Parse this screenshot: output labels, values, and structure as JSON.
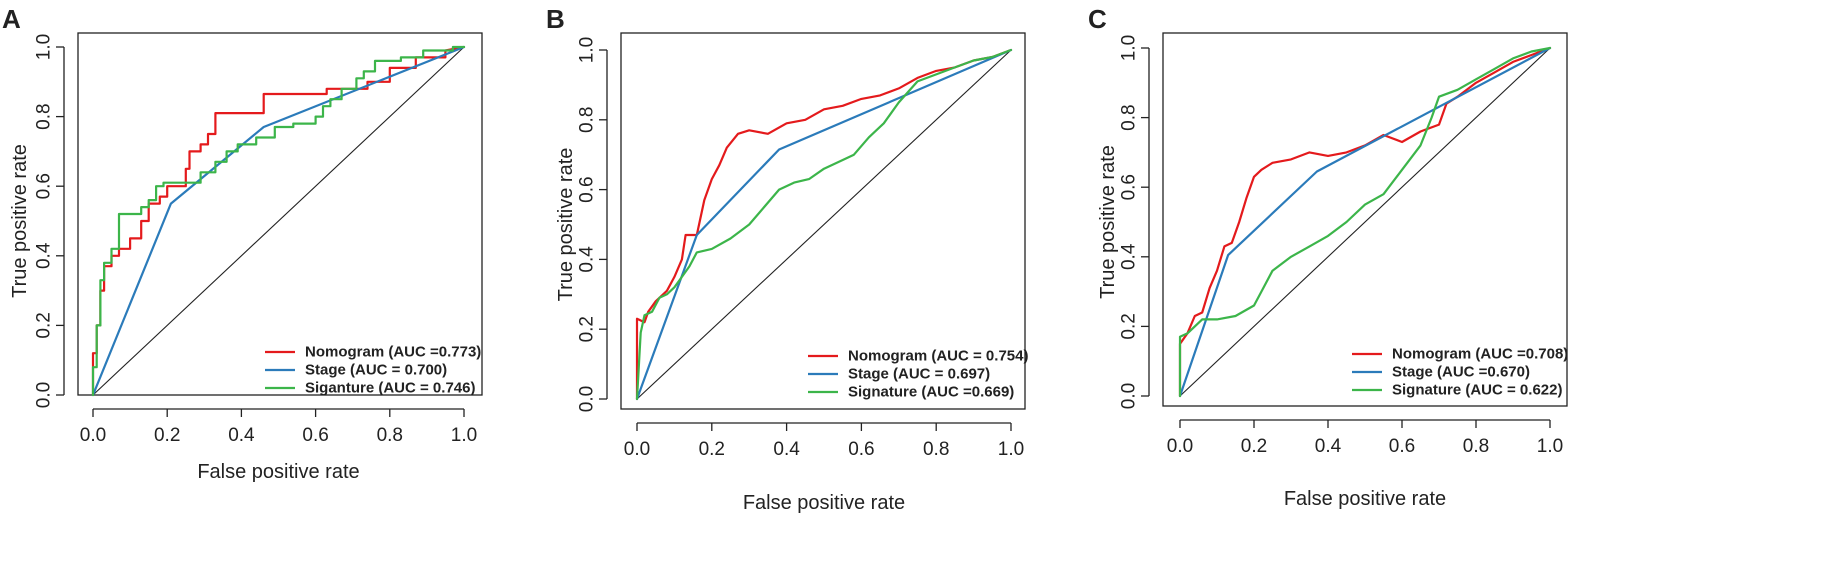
{
  "chart_data": [
    {
      "type": "line",
      "panel_label": "A",
      "xlabel": "False positive rate",
      "ylabel": "True positive rate",
      "xlim": [
        0,
        1
      ],
      "ylim": [
        0,
        1
      ],
      "xticks": [
        "0.0",
        "0.2",
        "0.4",
        "0.6",
        "0.8",
        "1.0"
      ],
      "yticks": [
        "0.0",
        "0.2",
        "0.4",
        "0.6",
        "0.8",
        "1.0"
      ],
      "legend_position": "bottom-right",
      "reference_line": "diagonal",
      "series": [
        {
          "name": "Nomogram (AUC =0.773)",
          "color": "#e41a1c",
          "points": [
            [
              0,
              0
            ],
            [
              0,
              0.12
            ],
            [
              0.01,
              0.12
            ],
            [
              0.01,
              0.2
            ],
            [
              0.02,
              0.2
            ],
            [
              0.02,
              0.3
            ],
            [
              0.03,
              0.3
            ],
            [
              0.03,
              0.37
            ],
            [
              0.05,
              0.37
            ],
            [
              0.05,
              0.4
            ],
            [
              0.07,
              0.4
            ],
            [
              0.07,
              0.42
            ],
            [
              0.1,
              0.42
            ],
            [
              0.1,
              0.45
            ],
            [
              0.13,
              0.45
            ],
            [
              0.13,
              0.5
            ],
            [
              0.15,
              0.5
            ],
            [
              0.15,
              0.55
            ],
            [
              0.18,
              0.55
            ],
            [
              0.18,
              0.57
            ],
            [
              0.2,
              0.57
            ],
            [
              0.2,
              0.6
            ],
            [
              0.25,
              0.6
            ],
            [
              0.25,
              0.65
            ],
            [
              0.26,
              0.65
            ],
            [
              0.26,
              0.7
            ],
            [
              0.29,
              0.7
            ],
            [
              0.29,
              0.72
            ],
            [
              0.31,
              0.72
            ],
            [
              0.31,
              0.75
            ],
            [
              0.33,
              0.75
            ],
            [
              0.33,
              0.81
            ],
            [
              0.46,
              0.81
            ],
            [
              0.46,
              0.865
            ],
            [
              0.63,
              0.865
            ],
            [
              0.63,
              0.88
            ],
            [
              0.74,
              0.88
            ],
            [
              0.74,
              0.9
            ],
            [
              0.8,
              0.9
            ],
            [
              0.8,
              0.94
            ],
            [
              0.87,
              0.94
            ],
            [
              0.87,
              0.97
            ],
            [
              0.95,
              0.97
            ],
            [
              0.95,
              0.99
            ],
            [
              1,
              1
            ]
          ]
        },
        {
          "name": "Stage (AUC = 0.700)",
          "color": "#2b7bba",
          "points": [
            [
              0,
              0
            ],
            [
              0.21,
              0.55
            ],
            [
              0.46,
              0.77
            ],
            [
              1,
              1
            ]
          ]
        },
        {
          "name": "Siganture (AUC = 0.746)",
          "color": "#3cb54a",
          "points": [
            [
              0,
              0
            ],
            [
              0,
              0.08
            ],
            [
              0.01,
              0.08
            ],
            [
              0.01,
              0.2
            ],
            [
              0.02,
              0.2
            ],
            [
              0.02,
              0.33
            ],
            [
              0.03,
              0.33
            ],
            [
              0.03,
              0.38
            ],
            [
              0.05,
              0.38
            ],
            [
              0.05,
              0.42
            ],
            [
              0.07,
              0.42
            ],
            [
              0.07,
              0.52
            ],
            [
              0.13,
              0.52
            ],
            [
              0.13,
              0.54
            ],
            [
              0.15,
              0.54
            ],
            [
              0.15,
              0.56
            ],
            [
              0.17,
              0.56
            ],
            [
              0.17,
              0.6
            ],
            [
              0.19,
              0.6
            ],
            [
              0.19,
              0.61
            ],
            [
              0.29,
              0.61
            ],
            [
              0.29,
              0.64
            ],
            [
              0.33,
              0.64
            ],
            [
              0.33,
              0.67
            ],
            [
              0.36,
              0.67
            ],
            [
              0.36,
              0.7
            ],
            [
              0.39,
              0.7
            ],
            [
              0.39,
              0.72
            ],
            [
              0.44,
              0.72
            ],
            [
              0.44,
              0.74
            ],
            [
              0.49,
              0.74
            ],
            [
              0.49,
              0.77
            ],
            [
              0.54,
              0.77
            ],
            [
              0.54,
              0.78
            ],
            [
              0.6,
              0.78
            ],
            [
              0.6,
              0.8
            ],
            [
              0.62,
              0.8
            ],
            [
              0.62,
              0.83
            ],
            [
              0.64,
              0.83
            ],
            [
              0.64,
              0.85
            ],
            [
              0.67,
              0.85
            ],
            [
              0.67,
              0.88
            ],
            [
              0.71,
              0.88
            ],
            [
              0.71,
              0.91
            ],
            [
              0.73,
              0.91
            ],
            [
              0.73,
              0.93
            ],
            [
              0.76,
              0.93
            ],
            [
              0.76,
              0.96
            ],
            [
              0.83,
              0.96
            ],
            [
              0.83,
              0.97
            ],
            [
              0.89,
              0.97
            ],
            [
              0.89,
              0.99
            ],
            [
              0.97,
              0.99
            ],
            [
              0.97,
              1
            ],
            [
              1,
              1
            ]
          ]
        }
      ]
    },
    {
      "type": "line",
      "panel_label": "B",
      "xlabel": "False positive rate",
      "ylabel": "True positive rate",
      "xlim": [
        0,
        1
      ],
      "ylim": [
        0,
        1
      ],
      "xticks": [
        "0.0",
        "0.2",
        "0.4",
        "0.6",
        "0.8",
        "1.0"
      ],
      "yticks": [
        "0.0",
        "0.2",
        "0.4",
        "0.6",
        "0.8",
        "1.0"
      ],
      "legend_position": "bottom-right",
      "reference_line": "diagonal",
      "series": [
        {
          "name": "Nomogram (AUC = 0.754)",
          "color": "#e41a1c",
          "points": [
            [
              0,
              0
            ],
            [
              0,
              0.23
            ],
            [
              0.02,
              0.22
            ],
            [
              0.03,
              0.25
            ],
            [
              0.05,
              0.28
            ],
            [
              0.08,
              0.31
            ],
            [
              0.1,
              0.35
            ],
            [
              0.12,
              0.4
            ],
            [
              0.13,
              0.47
            ],
            [
              0.16,
              0.47
            ],
            [
              0.18,
              0.57
            ],
            [
              0.2,
              0.63
            ],
            [
              0.22,
              0.67
            ],
            [
              0.24,
              0.72
            ],
            [
              0.27,
              0.76
            ],
            [
              0.3,
              0.77
            ],
            [
              0.35,
              0.76
            ],
            [
              0.4,
              0.79
            ],
            [
              0.45,
              0.8
            ],
            [
              0.5,
              0.83
            ],
            [
              0.55,
              0.84
            ],
            [
              0.6,
              0.86
            ],
            [
              0.65,
              0.87
            ],
            [
              0.7,
              0.89
            ],
            [
              0.75,
              0.92
            ],
            [
              0.8,
              0.94
            ],
            [
              0.85,
              0.95
            ],
            [
              0.9,
              0.97
            ],
            [
              0.95,
              0.98
            ],
            [
              1,
              1
            ]
          ]
        },
        {
          "name": "Stage (AUC = 0.697)",
          "color": "#2b7bba",
          "points": [
            [
              0,
              0
            ],
            [
              0.16,
              0.47
            ],
            [
              0.38,
              0.715
            ],
            [
              1,
              1
            ]
          ]
        },
        {
          "name": "Signature (AUC =0.669)",
          "color": "#3cb54a",
          "points": [
            [
              0,
              0
            ],
            [
              0.01,
              0.19
            ],
            [
              0.02,
              0.24
            ],
            [
              0.04,
              0.25
            ],
            [
              0.06,
              0.29
            ],
            [
              0.08,
              0.3
            ],
            [
              0.1,
              0.32
            ],
            [
              0.12,
              0.35
            ],
            [
              0.14,
              0.38
            ],
            [
              0.16,
              0.42
            ],
            [
              0.2,
              0.43
            ],
            [
              0.25,
              0.46
            ],
            [
              0.3,
              0.5
            ],
            [
              0.34,
              0.55
            ],
            [
              0.38,
              0.6
            ],
            [
              0.42,
              0.62
            ],
            [
              0.46,
              0.63
            ],
            [
              0.5,
              0.66
            ],
            [
              0.54,
              0.68
            ],
            [
              0.58,
              0.7
            ],
            [
              0.62,
              0.75
            ],
            [
              0.66,
              0.79
            ],
            [
              0.7,
              0.85
            ],
            [
              0.75,
              0.91
            ],
            [
              0.8,
              0.93
            ],
            [
              0.85,
              0.95
            ],
            [
              0.9,
              0.97
            ],
            [
              0.95,
              0.98
            ],
            [
              1,
              1
            ]
          ]
        }
      ]
    },
    {
      "type": "line",
      "panel_label": "C",
      "xlabel": "False positive rate",
      "ylabel": "True positive rate",
      "xlim": [
        0,
        1
      ],
      "ylim": [
        0,
        1
      ],
      "xticks": [
        "0.0",
        "0.2",
        "0.4",
        "0.6",
        "0.8",
        "1.0"
      ],
      "yticks": [
        "0.0",
        "0.2",
        "0.4",
        "0.6",
        "0.8",
        "1.0"
      ],
      "legend_position": "bottom-right",
      "reference_line": "diagonal",
      "series": [
        {
          "name": "Nomogram (AUC =0.708)",
          "color": "#e41a1c",
          "points": [
            [
              0,
              0
            ],
            [
              0,
              0.15
            ],
            [
              0.02,
              0.18
            ],
            [
              0.04,
              0.23
            ],
            [
              0.06,
              0.24
            ],
            [
              0.08,
              0.31
            ],
            [
              0.1,
              0.36
            ],
            [
              0.12,
              0.43
            ],
            [
              0.14,
              0.44
            ],
            [
              0.16,
              0.5
            ],
            [
              0.18,
              0.57
            ],
            [
              0.2,
              0.63
            ],
            [
              0.22,
              0.65
            ],
            [
              0.25,
              0.67
            ],
            [
              0.3,
              0.68
            ],
            [
              0.35,
              0.7
            ],
            [
              0.4,
              0.69
            ],
            [
              0.45,
              0.7
            ],
            [
              0.5,
              0.72
            ],
            [
              0.55,
              0.75
            ],
            [
              0.6,
              0.73
            ],
            [
              0.65,
              0.76
            ],
            [
              0.7,
              0.78
            ],
            [
              0.72,
              0.84
            ],
            [
              0.75,
              0.86
            ],
            [
              0.8,
              0.9
            ],
            [
              0.85,
              0.93
            ],
            [
              0.9,
              0.96
            ],
            [
              0.95,
              0.98
            ],
            [
              1,
              1
            ]
          ]
        },
        {
          "name": "Stage (AUC =0.670)",
          "color": "#2b7bba",
          "points": [
            [
              0,
              0
            ],
            [
              0.13,
              0.405
            ],
            [
              0.37,
              0.645
            ],
            [
              1,
              1
            ]
          ]
        },
        {
          "name": "Signature (AUC = 0.622)",
          "color": "#3cb54a",
          "points": [
            [
              0,
              0
            ],
            [
              0,
              0.17
            ],
            [
              0.02,
              0.18
            ],
            [
              0.04,
              0.2
            ],
            [
              0.06,
              0.22
            ],
            [
              0.1,
              0.22
            ],
            [
              0.15,
              0.23
            ],
            [
              0.2,
              0.26
            ],
            [
              0.22,
              0.3
            ],
            [
              0.25,
              0.36
            ],
            [
              0.3,
              0.4
            ],
            [
              0.35,
              0.43
            ],
            [
              0.4,
              0.46
            ],
            [
              0.45,
              0.5
            ],
            [
              0.5,
              0.55
            ],
            [
              0.55,
              0.58
            ],
            [
              0.6,
              0.65
            ],
            [
              0.65,
              0.72
            ],
            [
              0.68,
              0.8
            ],
            [
              0.7,
              0.86
            ],
            [
              0.75,
              0.88
            ],
            [
              0.8,
              0.91
            ],
            [
              0.85,
              0.94
            ],
            [
              0.9,
              0.97
            ],
            [
              0.95,
              0.99
            ],
            [
              1,
              1
            ]
          ]
        }
      ]
    }
  ]
}
